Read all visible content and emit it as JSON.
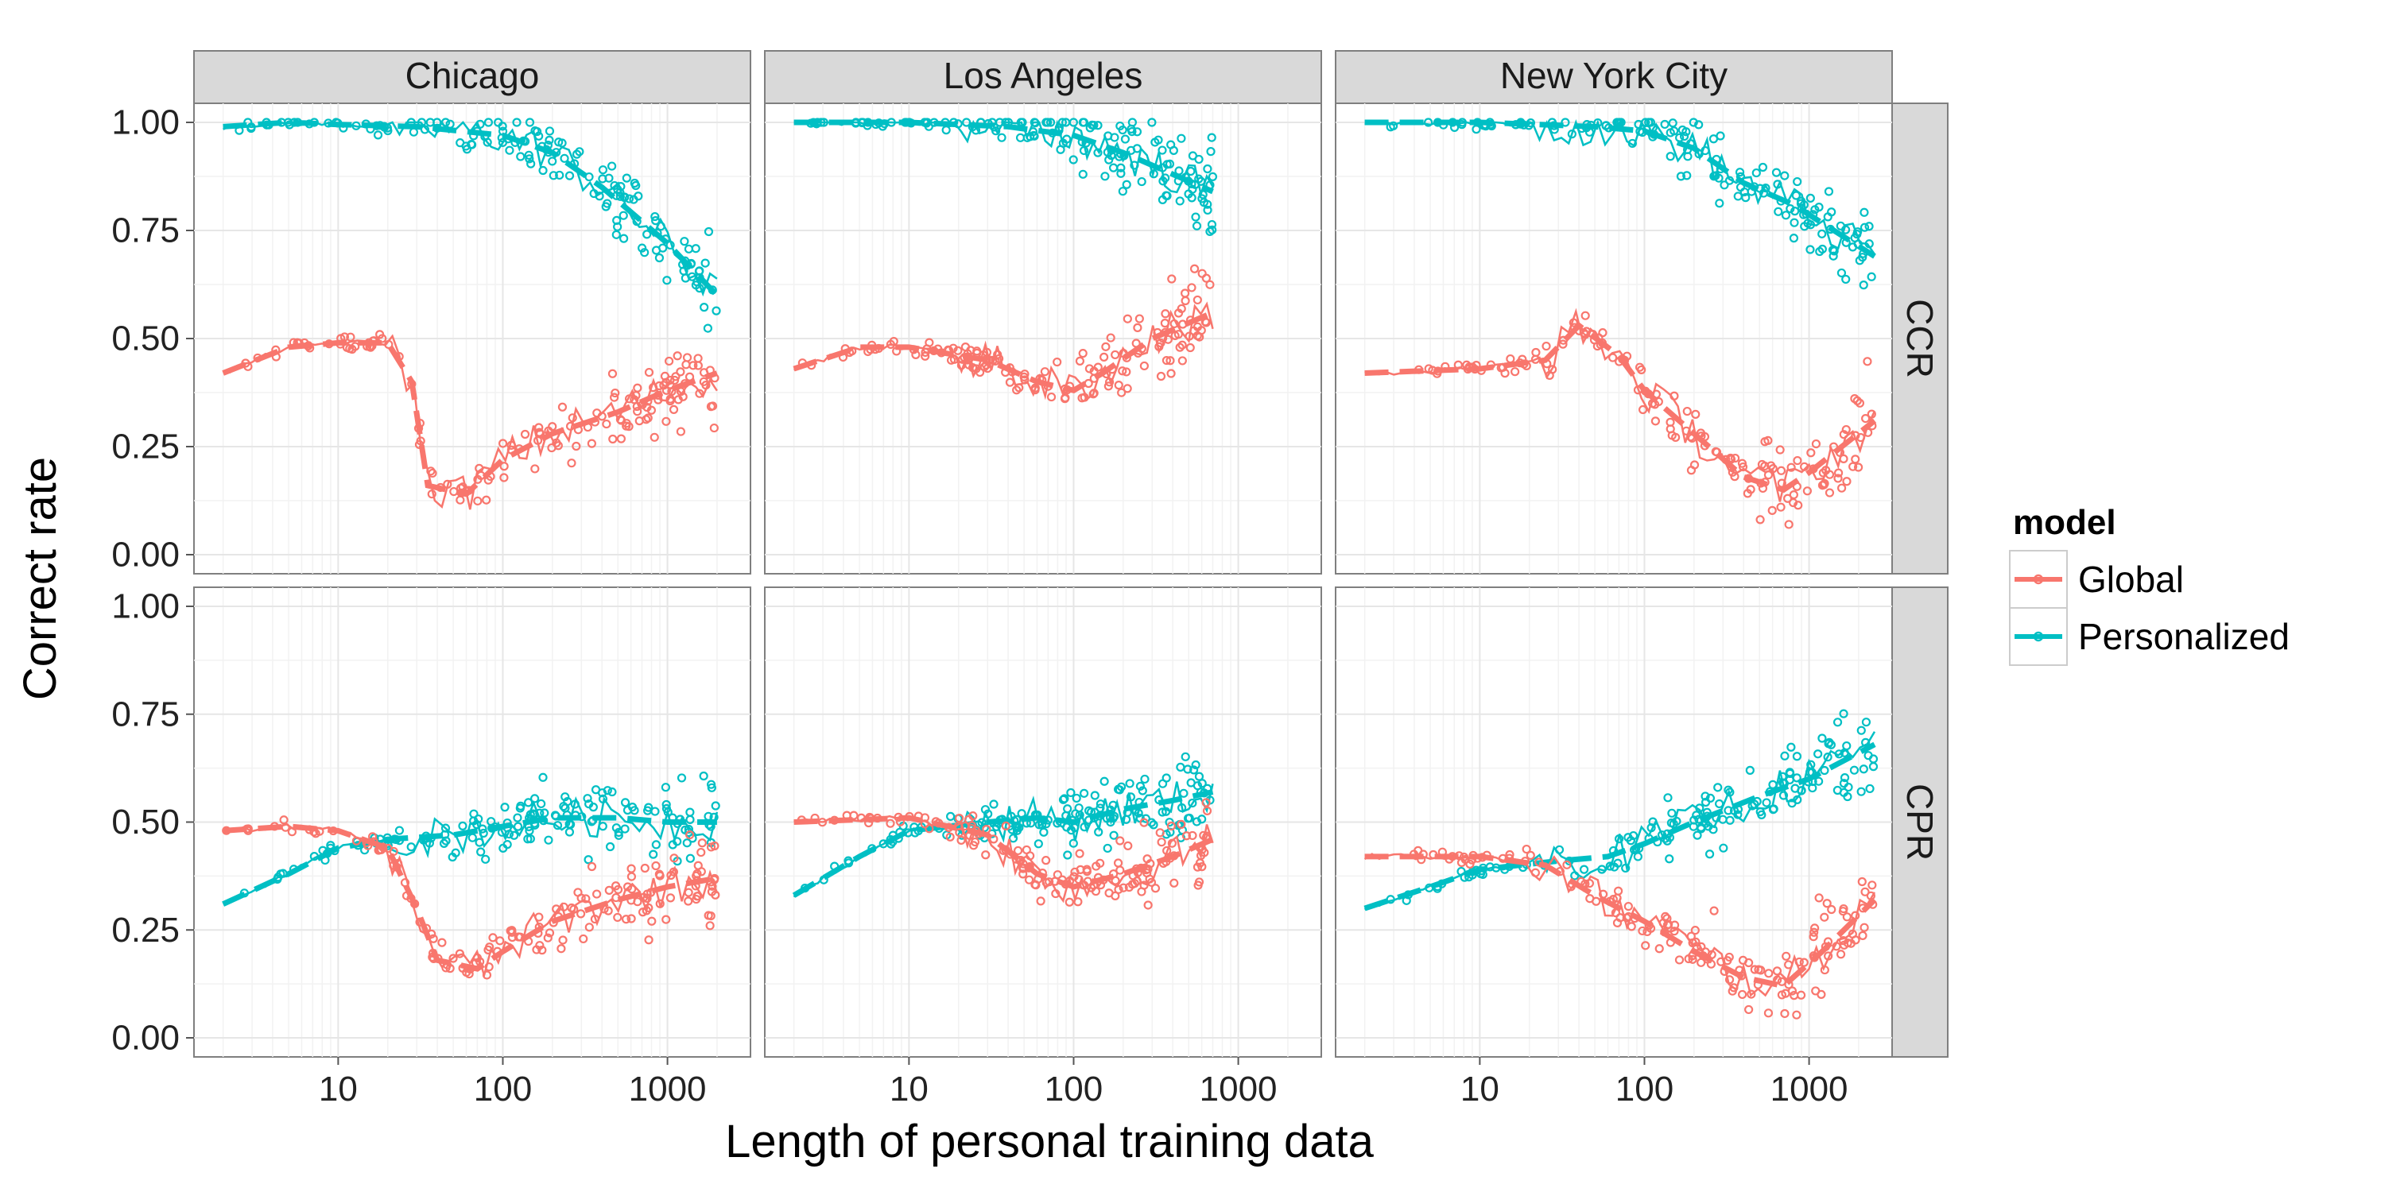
{
  "chart_data": {
    "type": "scatter",
    "xlabel": "Length of personal training data",
    "ylabel": "Correct rate",
    "x_scale": "log10",
    "xlim": [
      1.7,
      2500
    ],
    "ylim": [
      0,
      1
    ],
    "x_ticks": [
      10,
      100,
      1000
    ],
    "x_tick_labels": [
      "10",
      "100",
      "1000"
    ],
    "y_ticks": [
      0,
      0.25,
      0.5,
      0.75,
      1
    ],
    "y_tick_labels": [
      "0.00",
      "0.25",
      "0.50",
      "0.75",
      "1.00"
    ],
    "facet_columns": [
      "Chicago",
      "Los Angeles",
      "New York City"
    ],
    "facet_rows": [
      "CCR",
      "CPR"
    ],
    "grid": true,
    "legend": {
      "title": "model",
      "placement": "right",
      "entries": [
        {
          "label": "Global",
          "color": "#F8766D"
        },
        {
          "label": "Personalized",
          "color": "#00BFC4"
        }
      ]
    },
    "panels": [
      {
        "column": "Chicago",
        "row": "CCR",
        "series": [
          {
            "model": "Personalized",
            "trend": [
              [
                2,
                0.99
              ],
              [
                5,
                1.0
              ],
              [
                10,
                0.995
              ],
              [
                30,
                0.99
              ],
              [
                100,
                0.97
              ],
              [
                200,
                0.93
              ],
              [
                400,
                0.85
              ],
              [
                1000,
                0.72
              ],
              [
                2000,
                0.6
              ]
            ]
          },
          {
            "model": "Global",
            "trend": [
              [
                2,
                0.42
              ],
              [
                5,
                0.48
              ],
              [
                10,
                0.49
              ],
              [
                20,
                0.49
              ],
              [
                28,
                0.4
              ],
              [
                35,
                0.16
              ],
              [
                60,
                0.14
              ],
              [
                100,
                0.22
              ],
              [
                200,
                0.28
              ],
              [
                500,
                0.33
              ],
              [
                1000,
                0.38
              ],
              [
                2000,
                0.42
              ]
            ]
          }
        ]
      },
      {
        "column": "Los Angeles",
        "row": "CCR",
        "series": [
          {
            "model": "Personalized",
            "trend": [
              [
                2,
                1.0
              ],
              [
                10,
                1.0
              ],
              [
                40,
                0.99
              ],
              [
                100,
                0.97
              ],
              [
                200,
                0.93
              ],
              [
                400,
                0.88
              ],
              [
                700,
                0.84
              ]
            ]
          },
          {
            "model": "Global",
            "trend": [
              [
                2,
                0.43
              ],
              [
                5,
                0.48
              ],
              [
                10,
                0.48
              ],
              [
                30,
                0.45
              ],
              [
                60,
                0.4
              ],
              [
                100,
                0.38
              ],
              [
                150,
                0.42
              ],
              [
                300,
                0.5
              ],
              [
                700,
                0.56
              ]
            ]
          }
        ]
      },
      {
        "column": "New York City",
        "row": "CCR",
        "series": [
          {
            "model": "Personalized",
            "trend": [
              [
                2,
                1.0
              ],
              [
                10,
                1.0
              ],
              [
                50,
                0.99
              ],
              [
                100,
                0.98
              ],
              [
                200,
                0.94
              ],
              [
                400,
                0.86
              ],
              [
                800,
                0.81
              ],
              [
                2500,
                0.69
              ]
            ]
          },
          {
            "model": "Global",
            "trend": [
              [
                2,
                0.42
              ],
              [
                10,
                0.43
              ],
              [
                25,
                0.45
              ],
              [
                40,
                0.53
              ],
              [
                70,
                0.46
              ],
              [
                100,
                0.38
              ],
              [
                200,
                0.28
              ],
              [
                400,
                0.18
              ],
              [
                700,
                0.15
              ],
              [
                1000,
                0.19
              ],
              [
                2500,
                0.31
              ]
            ]
          }
        ]
      },
      {
        "column": "Chicago",
        "row": "CPR",
        "series": [
          {
            "model": "Personalized",
            "trend": [
              [
                2,
                0.31
              ],
              [
                5,
                0.38
              ],
              [
                10,
                0.44
              ],
              [
                20,
                0.46
              ],
              [
                50,
                0.47
              ],
              [
                100,
                0.49
              ],
              [
                200,
                0.51
              ],
              [
                500,
                0.51
              ],
              [
                1000,
                0.5
              ],
              [
                2000,
                0.5
              ]
            ]
          },
          {
            "model": "Global",
            "trend": [
              [
                2,
                0.48
              ],
              [
                5,
                0.49
              ],
              [
                10,
                0.48
              ],
              [
                20,
                0.44
              ],
              [
                30,
                0.3
              ],
              [
                40,
                0.18
              ],
              [
                70,
                0.16
              ],
              [
                100,
                0.2
              ],
              [
                200,
                0.27
              ],
              [
                500,
                0.32
              ],
              [
                1000,
                0.35
              ],
              [
                2000,
                0.37
              ]
            ]
          }
        ]
      },
      {
        "column": "Los Angeles",
        "row": "CPR",
        "series": [
          {
            "model": "Personalized",
            "trend": [
              [
                2,
                0.33
              ],
              [
                5,
                0.42
              ],
              [
                10,
                0.48
              ],
              [
                30,
                0.5
              ],
              [
                60,
                0.51
              ],
              [
                100,
                0.5
              ],
              [
                200,
                0.53
              ],
              [
                400,
                0.55
              ],
              [
                700,
                0.57
              ]
            ]
          },
          {
            "model": "Global",
            "trend": [
              [
                2,
                0.5
              ],
              [
                10,
                0.51
              ],
              [
                30,
                0.47
              ],
              [
                60,
                0.38
              ],
              [
                100,
                0.35
              ],
              [
                200,
                0.38
              ],
              [
                400,
                0.42
              ],
              [
                700,
                0.46
              ]
            ]
          }
        ]
      },
      {
        "column": "New York City",
        "row": "CPR",
        "series": [
          {
            "model": "Personalized",
            "trend": [
              [
                2,
                0.3
              ],
              [
                5,
                0.35
              ],
              [
                10,
                0.39
              ],
              [
                30,
                0.41
              ],
              [
                60,
                0.42
              ],
              [
                100,
                0.45
              ],
              [
                200,
                0.5
              ],
              [
                500,
                0.56
              ],
              [
                1000,
                0.6
              ],
              [
                2500,
                0.68
              ]
            ]
          },
          {
            "model": "Global",
            "trend": [
              [
                2,
                0.42
              ],
              [
                10,
                0.42
              ],
              [
                25,
                0.4
              ],
              [
                50,
                0.33
              ],
              [
                100,
                0.27
              ],
              [
                200,
                0.2
              ],
              [
                400,
                0.14
              ],
              [
                700,
                0.12
              ],
              [
                1200,
                0.2
              ],
              [
                2500,
                0.32
              ]
            ]
          }
        ]
      }
    ]
  }
}
